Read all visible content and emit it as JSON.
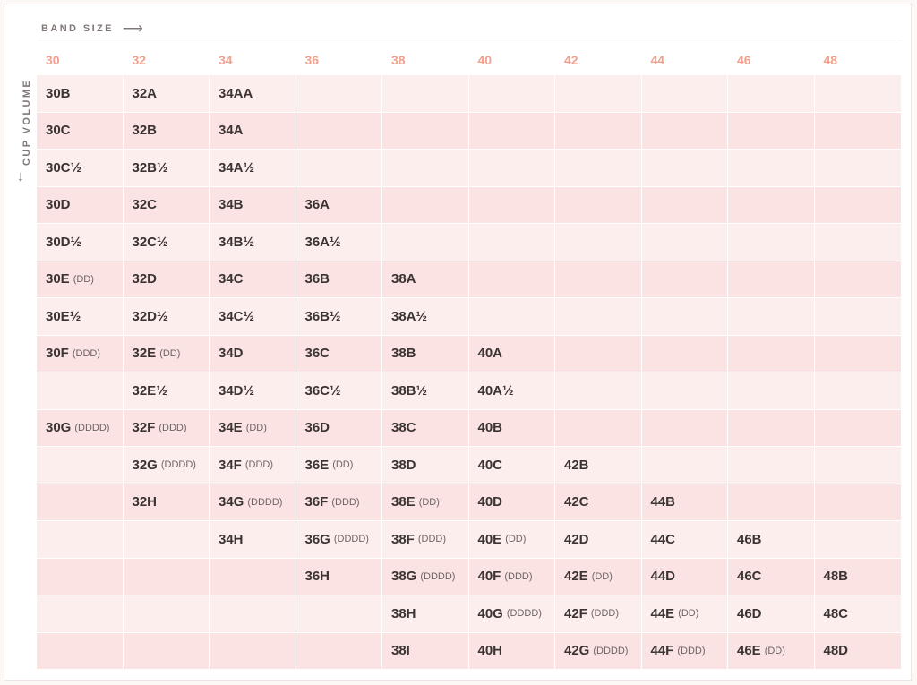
{
  "labels": {
    "band_size": "BAND SIZE",
    "band_arrow": "⟶",
    "cup_volume": "CUP VOLUME",
    "cup_arrow": "↓"
  },
  "bands": [
    "30",
    "32",
    "34",
    "36",
    "38",
    "40",
    "42",
    "44",
    "46",
    "48"
  ],
  "rows": [
    [
      [
        "30B",
        ""
      ],
      [
        "32A",
        ""
      ],
      [
        "34AA",
        ""
      ],
      [
        "",
        ""
      ],
      [
        "",
        ""
      ],
      [
        "",
        ""
      ],
      [
        "",
        ""
      ],
      [
        "",
        ""
      ],
      [
        "",
        ""
      ],
      [
        "",
        ""
      ]
    ],
    [
      [
        "30C",
        ""
      ],
      [
        "32B",
        ""
      ],
      [
        "34A",
        ""
      ],
      [
        "",
        ""
      ],
      [
        "",
        ""
      ],
      [
        "",
        ""
      ],
      [
        "",
        ""
      ],
      [
        "",
        ""
      ],
      [
        "",
        ""
      ],
      [
        "",
        ""
      ]
    ],
    [
      [
        "30C½",
        ""
      ],
      [
        "32B½",
        ""
      ],
      [
        "34A½",
        ""
      ],
      [
        "",
        ""
      ],
      [
        "",
        ""
      ],
      [
        "",
        ""
      ],
      [
        "",
        ""
      ],
      [
        "",
        ""
      ],
      [
        "",
        ""
      ],
      [
        "",
        ""
      ]
    ],
    [
      [
        "30D",
        ""
      ],
      [
        "32C",
        ""
      ],
      [
        "34B",
        ""
      ],
      [
        "36A",
        ""
      ],
      [
        "",
        ""
      ],
      [
        "",
        ""
      ],
      [
        "",
        ""
      ],
      [
        "",
        ""
      ],
      [
        "",
        ""
      ],
      [
        "",
        ""
      ]
    ],
    [
      [
        "30D½",
        ""
      ],
      [
        "32C½",
        ""
      ],
      [
        "34B½",
        ""
      ],
      [
        "36A½",
        ""
      ],
      [
        "",
        ""
      ],
      [
        "",
        ""
      ],
      [
        "",
        ""
      ],
      [
        "",
        ""
      ],
      [
        "",
        ""
      ],
      [
        "",
        ""
      ]
    ],
    [
      [
        "30E",
        "(DD)"
      ],
      [
        "32D",
        ""
      ],
      [
        "34C",
        ""
      ],
      [
        "36B",
        ""
      ],
      [
        "38A",
        ""
      ],
      [
        "",
        ""
      ],
      [
        "",
        ""
      ],
      [
        "",
        ""
      ],
      [
        "",
        ""
      ],
      [
        "",
        ""
      ]
    ],
    [
      [
        "30E½",
        ""
      ],
      [
        "32D½",
        ""
      ],
      [
        "34C½",
        ""
      ],
      [
        "36B½",
        ""
      ],
      [
        "38A½",
        ""
      ],
      [
        "",
        ""
      ],
      [
        "",
        ""
      ],
      [
        "",
        ""
      ],
      [
        "",
        ""
      ],
      [
        "",
        ""
      ]
    ],
    [
      [
        "30F",
        "(DDD)"
      ],
      [
        "32E",
        "(DD)"
      ],
      [
        "34D",
        ""
      ],
      [
        "36C",
        ""
      ],
      [
        "38B",
        ""
      ],
      [
        "40A",
        ""
      ],
      [
        "",
        ""
      ],
      [
        "",
        ""
      ],
      [
        "",
        ""
      ],
      [
        "",
        ""
      ]
    ],
    [
      [
        "",
        ""
      ],
      [
        "32E½",
        ""
      ],
      [
        "34D½",
        ""
      ],
      [
        "36C½",
        ""
      ],
      [
        "38B½",
        ""
      ],
      [
        "40A½",
        ""
      ],
      [
        "",
        ""
      ],
      [
        "",
        ""
      ],
      [
        "",
        ""
      ],
      [
        "",
        ""
      ]
    ],
    [
      [
        "30G",
        "(DDDD)"
      ],
      [
        "32F",
        "(DDD)"
      ],
      [
        "34E",
        "(DD)"
      ],
      [
        "36D",
        ""
      ],
      [
        "38C",
        ""
      ],
      [
        "40B",
        ""
      ],
      [
        "",
        ""
      ],
      [
        "",
        ""
      ],
      [
        "",
        ""
      ],
      [
        "",
        ""
      ]
    ],
    [
      [
        "",
        ""
      ],
      [
        "32G",
        "(DDDD)"
      ],
      [
        "34F",
        "(DDD)"
      ],
      [
        "36E",
        "(DD)"
      ],
      [
        "38D",
        ""
      ],
      [
        "40C",
        ""
      ],
      [
        "42B",
        ""
      ],
      [
        "",
        ""
      ],
      [
        "",
        ""
      ],
      [
        "",
        ""
      ]
    ],
    [
      [
        "",
        ""
      ],
      [
        "32H",
        ""
      ],
      [
        "34G",
        "(DDDD)"
      ],
      [
        "36F",
        "(DDD)"
      ],
      [
        "38E",
        "(DD)"
      ],
      [
        "40D",
        ""
      ],
      [
        "42C",
        ""
      ],
      [
        "44B",
        ""
      ],
      [
        "",
        ""
      ],
      [
        "",
        ""
      ]
    ],
    [
      [
        "",
        ""
      ],
      [
        "",
        ""
      ],
      [
        "34H",
        ""
      ],
      [
        "36G",
        "(DDDD)"
      ],
      [
        "38F",
        "(DDD)"
      ],
      [
        "40E",
        "(DD)"
      ],
      [
        "42D",
        ""
      ],
      [
        "44C",
        ""
      ],
      [
        "46B",
        ""
      ],
      [
        "",
        ""
      ]
    ],
    [
      [
        "",
        ""
      ],
      [
        "",
        ""
      ],
      [
        "",
        ""
      ],
      [
        "36H",
        ""
      ],
      [
        "38G",
        "(DDDD)"
      ],
      [
        "40F",
        "(DDD)"
      ],
      [
        "42E",
        "(DD)"
      ],
      [
        "44D",
        ""
      ],
      [
        "46C",
        ""
      ],
      [
        "48B",
        ""
      ]
    ],
    [
      [
        "",
        ""
      ],
      [
        "",
        ""
      ],
      [
        "",
        ""
      ],
      [
        "",
        ""
      ],
      [
        "38H",
        ""
      ],
      [
        "40G",
        "(DDDD)"
      ],
      [
        "42F",
        "(DDD)"
      ],
      [
        "44E",
        "(DD)"
      ],
      [
        "46D",
        ""
      ],
      [
        "48C",
        ""
      ]
    ],
    [
      [
        "",
        ""
      ],
      [
        "",
        ""
      ],
      [
        "",
        ""
      ],
      [
        "",
        ""
      ],
      [
        "38I",
        ""
      ],
      [
        "40H",
        ""
      ],
      [
        "42G",
        "(DDDD)"
      ],
      [
        "44F",
        "(DDD)"
      ],
      [
        "46E",
        "(DD)"
      ],
      [
        "48D",
        ""
      ]
    ]
  ],
  "colors": {
    "band_header": "#f2a08d",
    "row_light": "#fdeeee",
    "row_dark": "#fce3e3",
    "text": "#3a3433"
  }
}
